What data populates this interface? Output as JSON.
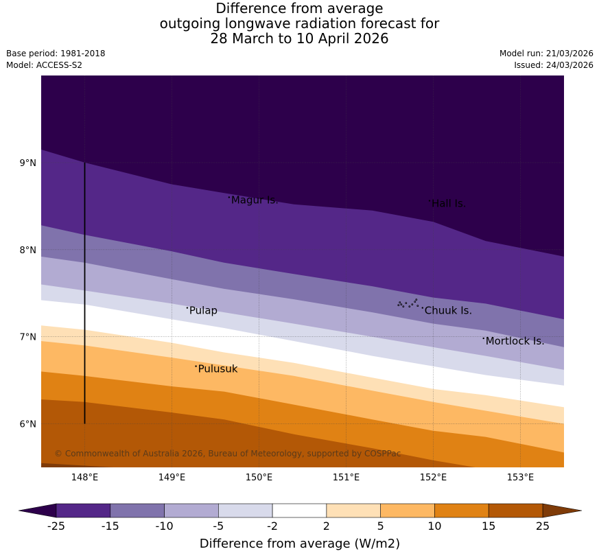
{
  "title": {
    "line1": "Difference from average",
    "line2": "outgoing longwave radiation forecast for",
    "line3": "28 March to 10 April 2026"
  },
  "meta": {
    "base_period": "Base period: 1981-2018",
    "model": "Model: ACCESS-S2",
    "model_run": "Model run: 21/03/2026",
    "issued": "Issued: 24/03/2026"
  },
  "map": {
    "lon_range": [
      147.5,
      153.5
    ],
    "lat_range": [
      5.5,
      10.0
    ],
    "lat_ticks": [
      {
        "value": 9,
        "label": "9°N"
      },
      {
        "value": 8,
        "label": "8°N"
      },
      {
        "value": 7,
        "label": "7°N"
      },
      {
        "value": 6,
        "label": "6°N"
      }
    ],
    "lon_ticks": [
      {
        "value": 148,
        "label": "148°E"
      },
      {
        "value": 149,
        "label": "149°E"
      },
      {
        "value": 150,
        "label": "150°E"
      },
      {
        "value": 151,
        "label": "151°E"
      },
      {
        "value": 152,
        "label": "152°E"
      },
      {
        "value": 153,
        "label": "153°E"
      }
    ],
    "places": [
      {
        "name": "Magur Is.",
        "lon": 149.68,
        "lat": 8.57
      },
      {
        "name": "Hall Is.",
        "lon": 151.98,
        "lat": 8.53
      },
      {
        "name": "Pulap",
        "lon": 149.2,
        "lat": 7.3
      },
      {
        "name": "Chuuk Is.",
        "lon": 151.9,
        "lat": 7.3
      },
      {
        "name": "Mortlock Is.",
        "lon": 152.6,
        "lat": 6.95
      },
      {
        "name": "Pulusuk",
        "lon": 149.3,
        "lat": 6.63
      }
    ],
    "boundary_line": {
      "lon": 148.0,
      "lat_from": 6.0,
      "lat_to": 9.0
    },
    "copyright": "© Commonwealth of Australia 2026, Bureau of Meteorology, supported by COSPPac"
  },
  "colorbar": {
    "label": "Difference from average (W/m2)",
    "ticks": [
      "-25",
      "-15",
      "-10",
      "-5",
      "-2",
      "2",
      "5",
      "10",
      "15",
      "25"
    ],
    "colors": [
      "#2d004b",
      "#542788",
      "#8073ac",
      "#b2abd2",
      "#d8daeb",
      "#ffffff",
      "#fee0b6",
      "#fdb863",
      "#e08214",
      "#b35806",
      "#7f3b08"
    ]
  },
  "chart_data": {
    "type": "heatmap",
    "title": "Difference from average outgoing longwave radiation forecast for 28 March to 10 April 2026",
    "variable": "OLR anomaly",
    "units": "W/m2",
    "levels": [
      -25,
      -15,
      -10,
      -5,
      -2,
      2,
      5,
      10,
      15,
      25
    ],
    "contours_lon": [
      147.5,
      148.0,
      149.0,
      149.6,
      150.4,
      151.3,
      152.0,
      152.6,
      153.5
    ],
    "contours": [
      {
        "level": -25,
        "lats": [
          9.15,
          9.0,
          8.75,
          8.65,
          8.52,
          8.45,
          8.32,
          8.1,
          7.92
        ]
      },
      {
        "level": -15,
        "lats": [
          8.28,
          8.17,
          7.98,
          7.85,
          7.72,
          7.58,
          7.45,
          7.38,
          7.2
        ]
      },
      {
        "level": -10,
        "lats": [
          7.92,
          7.85,
          7.66,
          7.55,
          7.43,
          7.28,
          7.15,
          7.07,
          6.88
        ]
      },
      {
        "level": -5,
        "lats": [
          7.6,
          7.53,
          7.38,
          7.28,
          7.15,
          7.0,
          6.88,
          6.78,
          6.62
        ]
      },
      {
        "level": -2,
        "lats": [
          7.42,
          7.37,
          7.2,
          7.1,
          6.95,
          6.78,
          6.66,
          6.56,
          6.44
        ]
      },
      {
        "level": 2,
        "lats": [
          7.13,
          7.08,
          6.93,
          6.82,
          6.7,
          6.53,
          6.4,
          6.33,
          6.19
        ]
      },
      {
        "level": 5,
        "lats": [
          6.95,
          6.9,
          6.76,
          6.67,
          6.55,
          6.38,
          6.25,
          6.15,
          6.0
        ]
      },
      {
        "level": 10,
        "lats": [
          6.6,
          6.55,
          6.43,
          6.37,
          6.22,
          6.05,
          5.92,
          5.85,
          5.67
        ]
      },
      {
        "level": 15,
        "lats": [
          6.28,
          6.25,
          6.13,
          6.05,
          5.88,
          5.72,
          5.58,
          5.48,
          5.35
        ]
      },
      {
        "level": 25,
        "lats": [
          5.55,
          5.52,
          5.46,
          5.42,
          5.32,
          5.22,
          5.12,
          5.05,
          4.95
        ]
      }
    ]
  }
}
